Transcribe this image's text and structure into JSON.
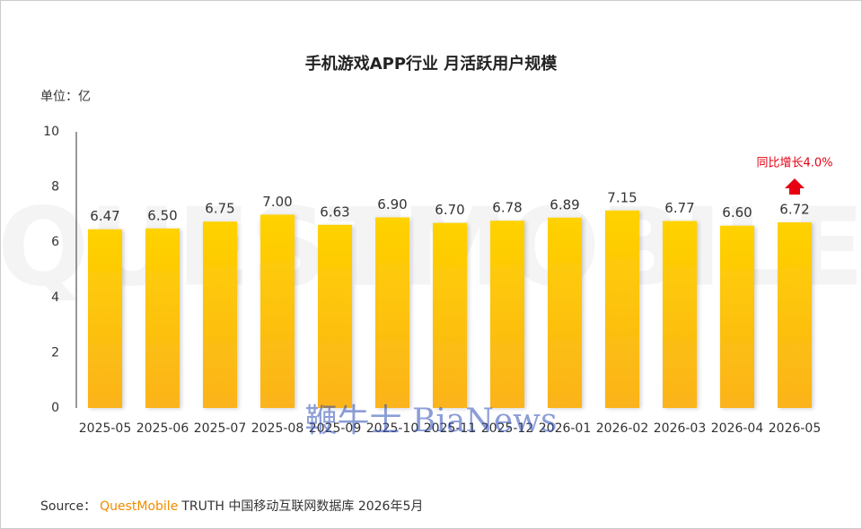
{
  "chart_data": {
    "type": "bar",
    "title": "手机游戏APP行业 月活跃用户规模",
    "unit_label": "单位：亿",
    "categories": [
      "2025-05",
      "2025-06",
      "2025-07",
      "2025-08",
      "2025-09",
      "2025-10",
      "2025-11",
      "2025-12",
      "2026-01",
      "2026-02",
      "2026-03",
      "2026-04",
      "2026-05"
    ],
    "values": [
      6.47,
      6.5,
      6.75,
      7,
      6.63,
      6.9,
      6.7,
      6.78,
      6.89,
      7.15,
      6.77,
      6.6,
      6.72
    ],
    "value_labels": [
      "6.47",
      "6.50",
      "6.75",
      "7.00",
      "6.63",
      "6.90",
      "6.70",
      "6.78",
      "6.89",
      "7.15",
      "6.77",
      "6.60",
      "6.72"
    ],
    "color": "#fdc70a",
    "ylim": [
      0,
      10
    ],
    "yticks": [
      0,
      2,
      4,
      6,
      8,
      10
    ],
    "grid": false,
    "annotation": "同比增长4.0%",
    "source": {
      "prefix": "Source：",
      "brand": "QuestMobile",
      "rest": "TRUTH 中国移动互联网数据库 2026年5月"
    },
    "watermarks": [
      "QUESTMOBILE",
      "鞭牛士 BiaNews"
    ]
  }
}
